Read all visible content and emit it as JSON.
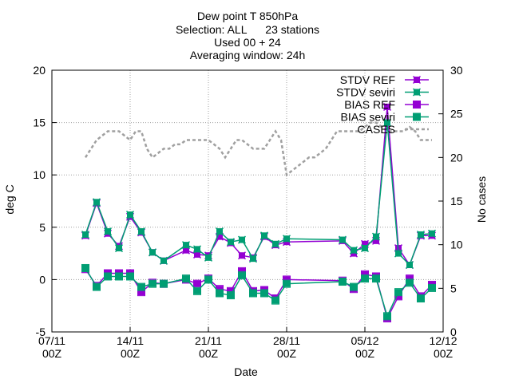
{
  "chart_data": {
    "type": "line",
    "title_lines": [
      "Dew point T 850hPa",
      "Selection: ALL      23 stations",
      "Used 00 + 24",
      "Averaging window: 24h"
    ],
    "xlabel": "Date",
    "ylabel": "deg C",
    "y2label": "No cases",
    "x_ticks": [
      {
        "day": 7,
        "label1": "07/11",
        "label2": "00Z"
      },
      {
        "day": 14,
        "label1": "14/11",
        "label2": "00Z"
      },
      {
        "day": 21,
        "label1": "21/11",
        "label2": "00Z"
      },
      {
        "day": 28,
        "label1": "28/11",
        "label2": "00Z"
      },
      {
        "day": 35,
        "label1": "05/12",
        "label2": "00Z"
      },
      {
        "day": 42,
        "label1": "12/12",
        "label2": "00Z"
      }
    ],
    "xlim": [
      7,
      42
    ],
    "ylim": [
      -5,
      20
    ],
    "yticks": [
      -5,
      0,
      5,
      10,
      15,
      20
    ],
    "y2lim": [
      0,
      30
    ],
    "y2ticks": [
      0,
      5,
      10,
      15,
      20,
      25,
      30
    ],
    "grid": true,
    "legend_position": "top-right",
    "series": [
      {
        "name": "STDV REF",
        "axis": "y",
        "color": "#9400d3",
        "marker": "x-box",
        "x": [
          10,
          11,
          12,
          13,
          14,
          15,
          16,
          17,
          19,
          20,
          21,
          22,
          23,
          24,
          25,
          26,
          27,
          28,
          33,
          34,
          35,
          36,
          37,
          38,
          39,
          40,
          41
        ],
        "y": [
          4.2,
          7.3,
          4.4,
          3.2,
          6.0,
          4.5,
          2.6,
          1.8,
          2.8,
          2.4,
          2.3,
          4.1,
          3.5,
          2.3,
          2.1,
          4.1,
          3.3,
          3.6,
          3.7,
          2.5,
          3.4,
          3.7,
          16.5,
          3.0,
          1.4,
          4.2,
          4.2
        ]
      },
      {
        "name": "STDV seviri",
        "axis": "y",
        "color": "#009e73",
        "marker": "x-box",
        "x": [
          10,
          11,
          12,
          13,
          14,
          15,
          16,
          17,
          19,
          20,
          21,
          22,
          23,
          24,
          25,
          26,
          27,
          28,
          33,
          34,
          35,
          36,
          37,
          38,
          39,
          40,
          41
        ],
        "y": [
          4.3,
          7.4,
          4.6,
          3.0,
          6.2,
          4.6,
          2.6,
          1.8,
          3.3,
          2.9,
          2.1,
          4.6,
          3.6,
          3.8,
          2.0,
          4.2,
          3.4,
          3.9,
          3.8,
          2.8,
          3.0,
          4.1,
          15.0,
          2.5,
          1.4,
          4.3,
          4.4
        ]
      },
      {
        "name": "BIAS REF",
        "axis": "y",
        "color": "#9400d3",
        "marker": "box",
        "x": [
          10,
          11,
          12,
          13,
          14,
          15,
          16,
          17,
          19,
          20,
          21,
          22,
          23,
          24,
          25,
          26,
          27,
          28,
          33,
          34,
          35,
          36,
          37,
          38,
          39,
          40,
          41
        ],
        "y": [
          1.0,
          -0.6,
          0.6,
          0.6,
          0.6,
          -1.2,
          -0.3,
          -0.4,
          0.0,
          -0.4,
          0.1,
          -0.9,
          -1.1,
          0.8,
          -1.1,
          -1.0,
          -1.8,
          0.0,
          -0.1,
          -0.9,
          0.5,
          0.3,
          -3.7,
          -1.6,
          0.1,
          -1.6,
          -0.5
        ]
      },
      {
        "name": "BIAS seviri",
        "axis": "y",
        "color": "#009e73",
        "marker": "box",
        "x": [
          10,
          11,
          12,
          13,
          14,
          15,
          16,
          17,
          19,
          20,
          21,
          22,
          23,
          24,
          25,
          26,
          27,
          28,
          33,
          34,
          35,
          36,
          37,
          38,
          39,
          40,
          41
        ],
        "y": [
          1.1,
          -0.7,
          0.3,
          0.3,
          0.3,
          -0.7,
          -0.4,
          -0.4,
          0.1,
          -1.1,
          0.0,
          -1.3,
          -1.5,
          0.4,
          -1.3,
          -1.3,
          -2.0,
          -0.4,
          -0.2,
          -0.7,
          0.1,
          0.1,
          -3.5,
          -1.2,
          -0.3,
          -1.8,
          -0.8
        ]
      },
      {
        "name": "CASES",
        "axis": "y2",
        "color": "#a0a0a0",
        "dashed": true,
        "x": [
          10,
          10.5,
          11,
          11.5,
          12,
          12.5,
          13,
          13.5,
          14,
          14.5,
          15,
          15.5,
          16,
          16.5,
          17,
          17.5,
          18,
          18.5,
          19,
          19.5,
          20,
          20.5,
          21,
          21.5,
          22,
          22.5,
          23,
          23.5,
          24,
          24.5,
          25,
          25.5,
          26,
          26.5,
          27,
          27.5,
          28,
          28.5,
          29,
          29.5,
          30,
          30.5,
          31,
          31.5,
          32,
          32.5,
          33,
          33.5,
          34,
          34.5,
          35,
          35.5,
          36,
          36.5,
          37,
          37.5,
          38,
          38.5,
          39,
          39.5,
          40,
          40.5,
          41
        ],
        "y": [
          20,
          21,
          22,
          22.5,
          23,
          23,
          23,
          22.5,
          22,
          23,
          23,
          21,
          20,
          20.5,
          21,
          21,
          21.5,
          21.5,
          22,
          22,
          22,
          22,
          22,
          21.5,
          21,
          20,
          21,
          22,
          22,
          21.5,
          21,
          21,
          21,
          22,
          23,
          22,
          18,
          18.5,
          19,
          19.5,
          20,
          20,
          20.5,
          21,
          22,
          23,
          23,
          23,
          23,
          23,
          23.5,
          24,
          24,
          23.5,
          23,
          23,
          23,
          23,
          23.5,
          23,
          22,
          22,
          22
        ]
      }
    ]
  }
}
